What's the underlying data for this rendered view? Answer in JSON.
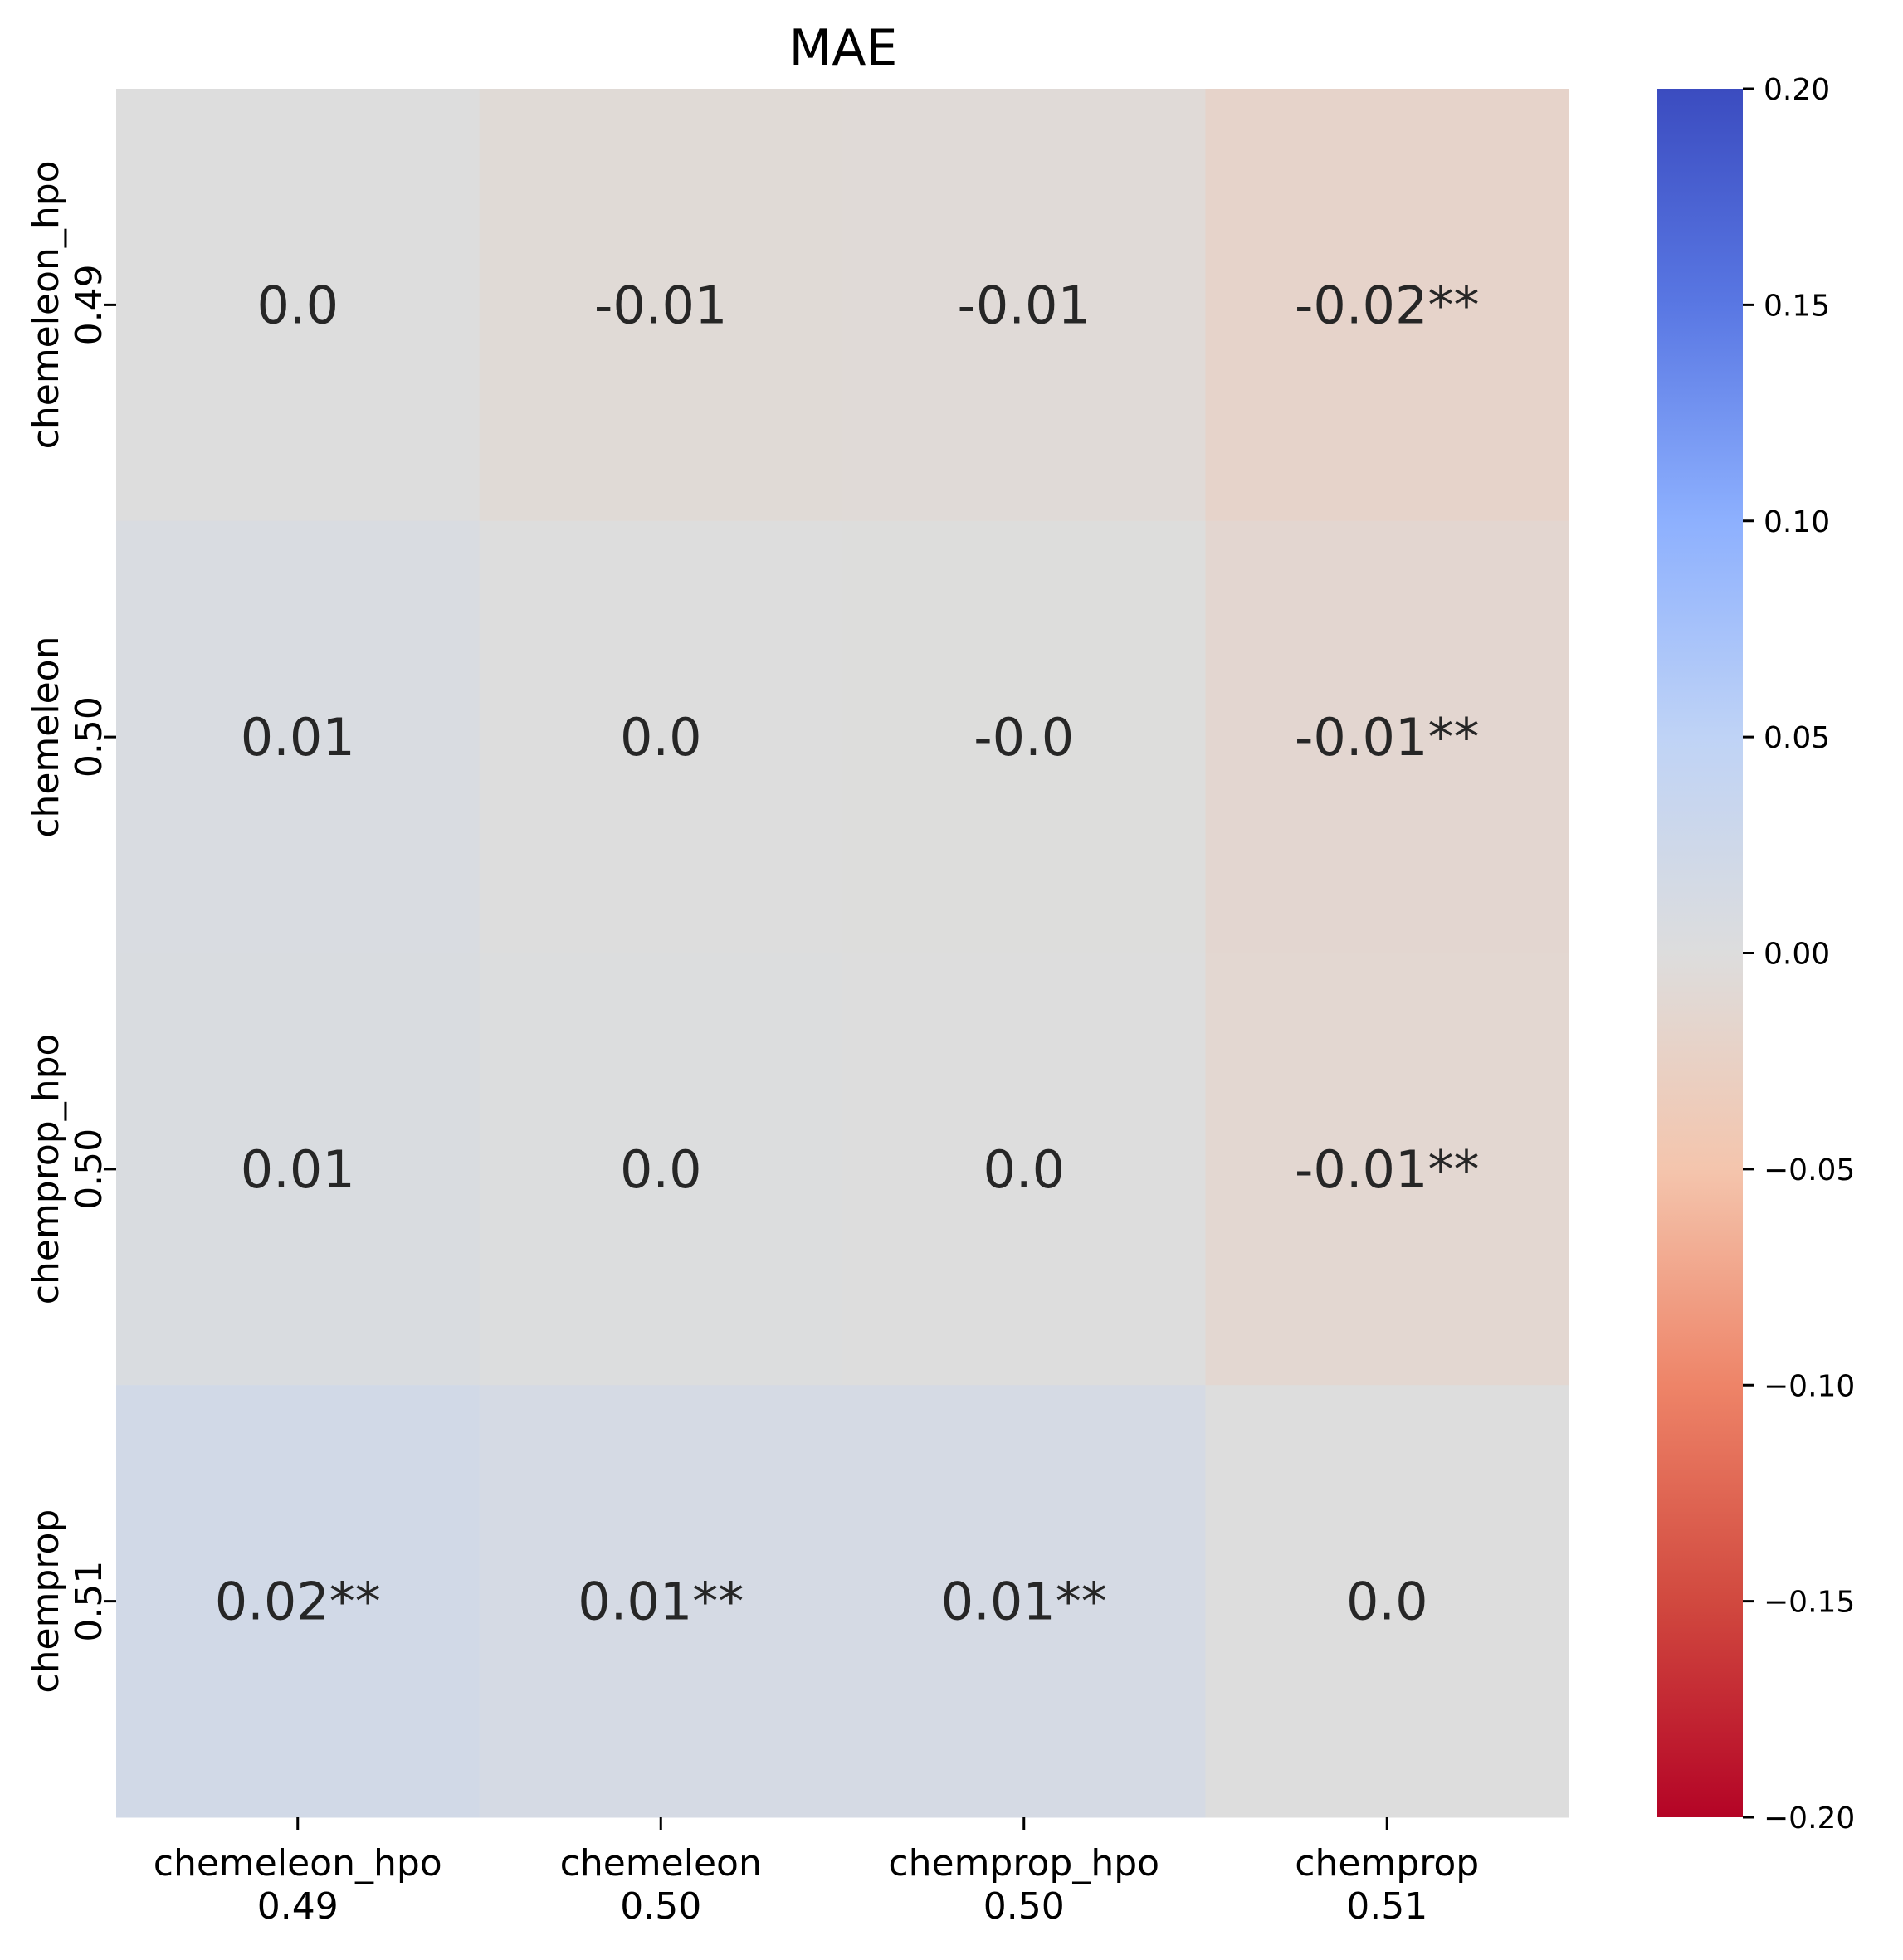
{
  "chart_data": {
    "type": "heatmap",
    "title": "MAE",
    "x_labels": [
      [
        "chemeleon_hpo",
        "0.49"
      ],
      [
        "chemeleon",
        "0.50"
      ],
      [
        "chemprop_hpo",
        "0.50"
      ],
      [
        "chemprop",
        "0.51"
      ]
    ],
    "y_labels": [
      [
        "chemeleon_hpo",
        "0.49"
      ],
      [
        "chemeleon",
        "0.50"
      ],
      [
        "chemprop_hpo",
        "0.50"
      ],
      [
        "chemprop",
        "0.51"
      ]
    ],
    "values": [
      [
        0.0,
        -0.007,
        -0.006,
        -0.02
      ],
      [
        0.007,
        0.0,
        -0.001,
        -0.014
      ],
      [
        0.006,
        0.001,
        0.0,
        -0.013
      ],
      [
        0.02,
        0.014,
        0.013,
        0.0
      ]
    ],
    "annotations": [
      [
        "0.0",
        "-0.01",
        "-0.01",
        "-0.02**"
      ],
      [
        "0.01",
        "0.0",
        "-0.0",
        "-0.01**"
      ],
      [
        "0.01",
        "0.0",
        "0.0",
        "-0.01**"
      ],
      [
        "0.02**",
        "0.01**",
        "0.01**",
        "0.0"
      ]
    ],
    "colormap": "coolwarm_r",
    "vmin": -0.2,
    "vmax": 0.2,
    "colorbar_ticks": [
      "0.20",
      "0.15",
      "0.10",
      "0.05",
      "0.00",
      "−0.05",
      "−0.10",
      "−0.15",
      "−0.20"
    ],
    "colorbar_tick_values": [
      0.2,
      0.15,
      0.1,
      0.05,
      0.0,
      -0.05,
      -0.1,
      -0.15,
      -0.2
    ]
  }
}
